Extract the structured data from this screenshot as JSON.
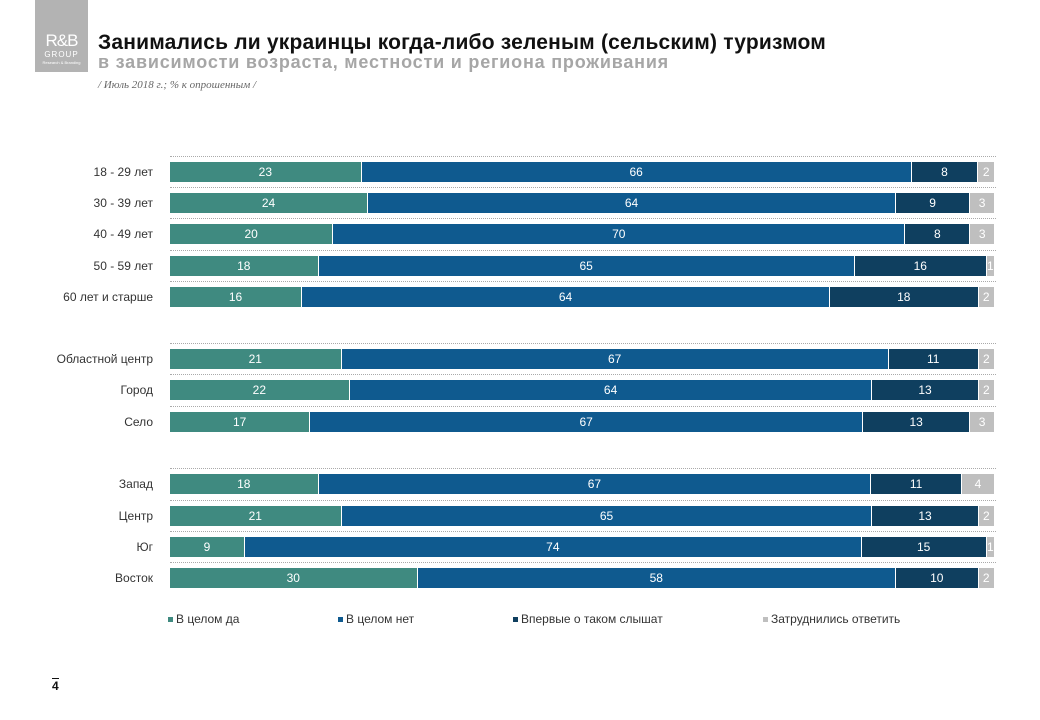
{
  "logo": {
    "line1": "R&B",
    "line2": "GROUP",
    "line3": "Research & Branding"
  },
  "header": {
    "title": "Занимались ли украинцы когда-либо зеленым (сельским) туризмом",
    "subtitle": "в зависимости возраста, местности и региона проживания",
    "note": "/ Июль 2018  г.; % к опрошенным  /"
  },
  "page_number": "4",
  "chart_data": {
    "type": "bar",
    "orientation": "horizontal",
    "stacked": true,
    "unit": "%",
    "categories": [
      "18 - 29 лет",
      "30 - 39 лет",
      "40 - 49 лет",
      "50 - 59 лет",
      "60 лет и старше",
      "Областной  центр",
      "Город",
      "Село",
      "Запад",
      "Центр",
      "Юг",
      "Восток"
    ],
    "groups": [
      [
        0,
        1,
        2,
        3,
        4
      ],
      [
        5,
        6,
        7
      ],
      [
        8,
        9,
        10,
        11
      ]
    ],
    "series": [
      {
        "name": "В целом да",
        "color": "#3f8a80",
        "values": [
          23,
          24,
          20,
          18,
          16,
          21,
          22,
          17,
          18,
          21,
          9,
          30
        ]
      },
      {
        "name": "В целом нет",
        "color": "#0f5a8f",
        "values": [
          66,
          64,
          70,
          65,
          64,
          67,
          64,
          67,
          67,
          65,
          74,
          58
        ]
      },
      {
        "name": "Впервые о таком слышат",
        "color": "#0f3f5f",
        "values": [
          8,
          9,
          8,
          16,
          18,
          11,
          13,
          13,
          11,
          13,
          15,
          10
        ]
      },
      {
        "name": "Затруднились ответить",
        "color": "#bfbfbf",
        "values": [
          2,
          3,
          3,
          1,
          2,
          2,
          2,
          3,
          4,
          2,
          1,
          2
        ]
      }
    ],
    "legend_position": "bottom"
  }
}
